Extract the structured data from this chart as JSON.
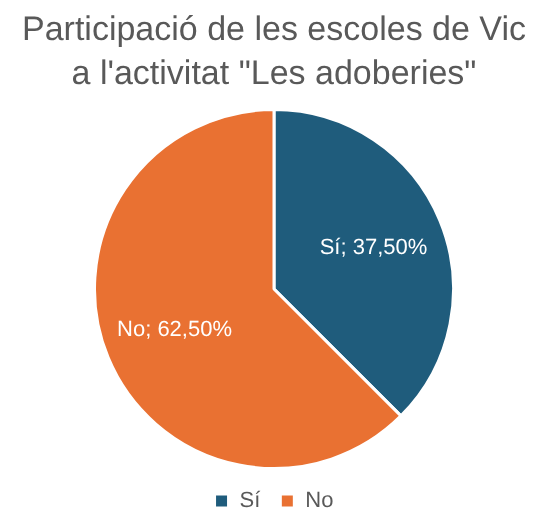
{
  "chart_data": {
    "type": "pie",
    "title": "Participació de les escoles de Vic a l'activitat \"Les adoberies\"",
    "categories": [
      "Sí",
      "No"
    ],
    "values": [
      37.5,
      62.5
    ],
    "colors": [
      "#1f5c7c",
      "#e97132"
    ],
    "value_labels": [
      "Sí; 37,50%",
      "No; 62,50%"
    ],
    "legend": "bottom"
  }
}
